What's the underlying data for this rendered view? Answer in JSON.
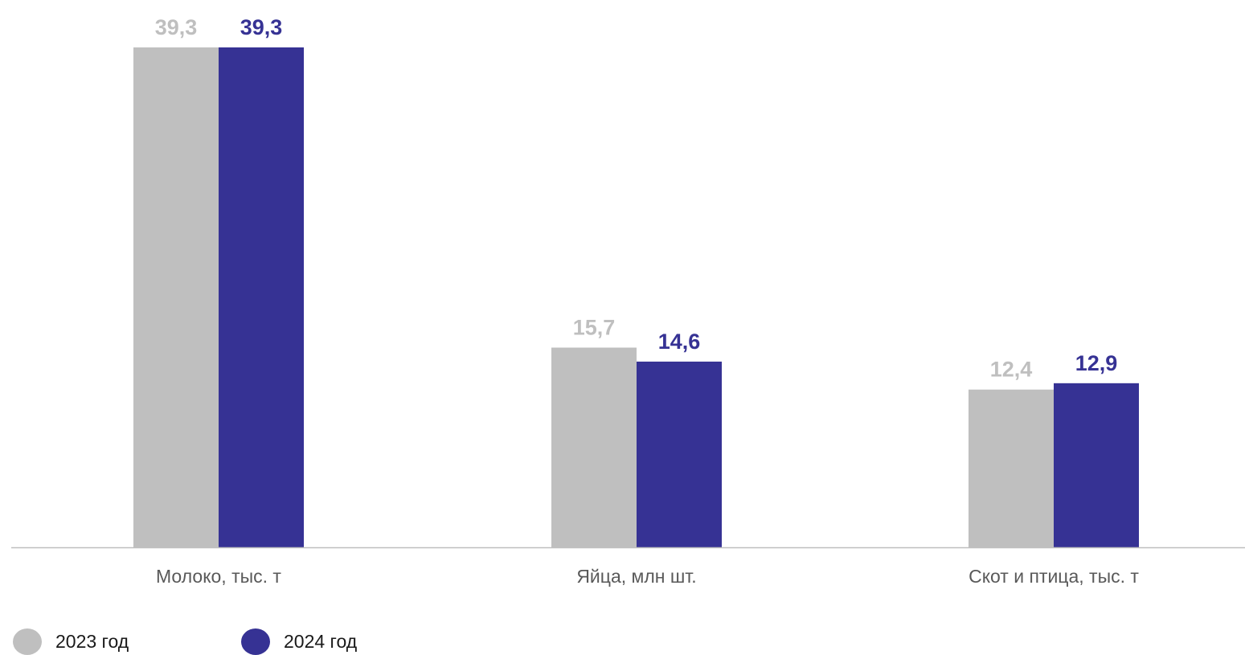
{
  "chart_data": {
    "type": "bar",
    "categories": [
      "Молоко, тыс. т",
      "Яйца, млн шт.",
      "Скот и птица, тыс. т"
    ],
    "series": [
      {
        "name": "2023 год",
        "values": [
          39.3,
          15.7,
          12.4
        ],
        "labels": [
          "39,3",
          "15,7",
          "12,4"
        ],
        "color": "#bfbfbf"
      },
      {
        "name": "2024 год",
        "values": [
          39.3,
          14.6,
          12.9
        ],
        "labels": [
          "39,3",
          "14,6",
          "12,9"
        ],
        "color": "#363294"
      }
    ],
    "ylim": [
      0,
      39.3
    ],
    "grid": false,
    "legend": "bottom-left",
    "axis_color": "#bfbfbf",
    "category_label_color": "#595959"
  }
}
